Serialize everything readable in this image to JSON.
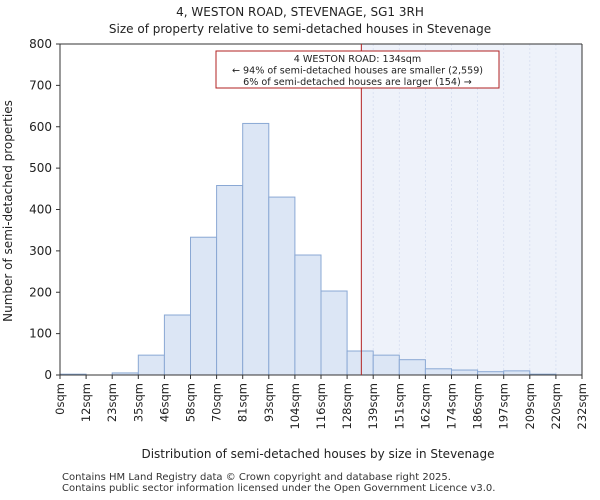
{
  "chart_data": {
    "type": "bar",
    "title_line1": "4, WESTON ROAD, STEVENAGE, SG1 3RH",
    "title_line2": "Size of property relative to semi-detached houses in Stevenage",
    "xlabel": "Distribution of semi-detached houses by size in Stevenage",
    "ylabel": "Number of semi-detached properties",
    "ylim": [
      0,
      800
    ],
    "yticks": [
      0,
      100,
      200,
      300,
      400,
      500,
      600,
      700,
      800
    ],
    "bin_edges": [
      0,
      12,
      23,
      35,
      46,
      58,
      70,
      81,
      93,
      104,
      116,
      128,
      139,
      151,
      162,
      174,
      186,
      197,
      209,
      220,
      232
    ],
    "tick_labels": [
      "0sqm",
      "12sqm",
      "23sqm",
      "35sqm",
      "46sqm",
      "58sqm",
      "70sqm",
      "81sqm",
      "93sqm",
      "104sqm",
      "116sqm",
      "128sqm",
      "139sqm",
      "151sqm",
      "162sqm",
      "174sqm",
      "186sqm",
      "197sqm",
      "209sqm",
      "220sqm",
      "232sqm"
    ],
    "values": [
      2,
      0,
      5,
      48,
      145,
      333,
      458,
      608,
      430,
      290,
      203,
      58,
      48,
      37,
      15,
      12,
      8,
      10,
      2,
      0
    ],
    "marker_value": 134,
    "annotation": {
      "line1": "4 WESTON ROAD: 134sqm",
      "line2": "← 94% of semi-detached houses are smaller (2,559)",
      "line3": "6% of semi-detached houses are larger (154) →"
    },
    "colors": {
      "bar_fill": "#dce6f5",
      "bar_stroke": "#8aa8d4",
      "highlight_bg": "#eef2fa",
      "marker": "#b22222"
    }
  },
  "footer": {
    "line1": "Contains HM Land Registry data © Crown copyright and database right 2025.",
    "line2": "Contains public sector information licensed under the Open Government Licence v3.0."
  }
}
